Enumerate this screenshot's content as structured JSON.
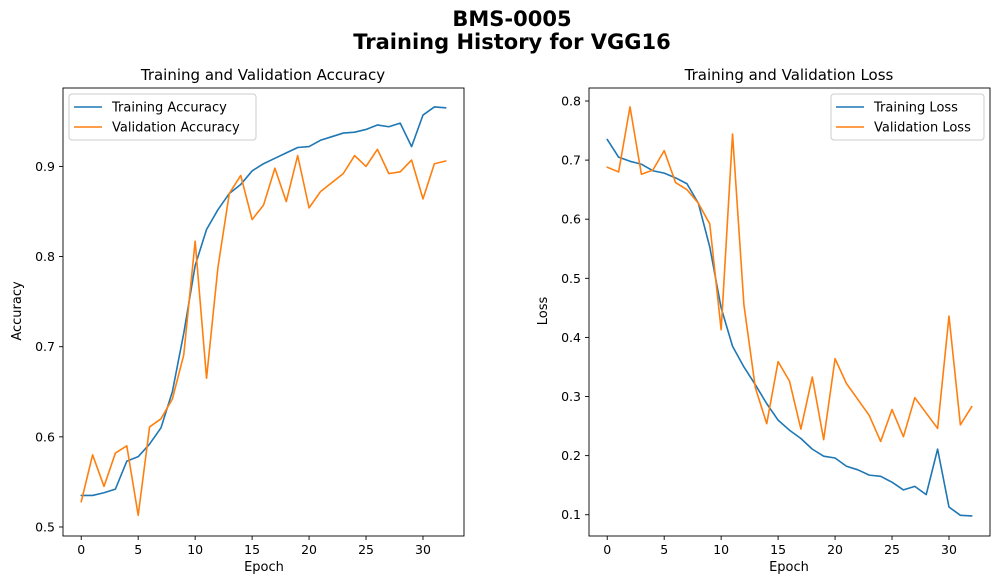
{
  "figure": {
    "title_line1": "BMS-0005",
    "title_line2": "Training History for VGG16"
  },
  "colors": {
    "series1": "#1f77b4",
    "series2": "#ff7f0e"
  },
  "chart_data": [
    {
      "type": "line",
      "title": "Training and Validation Accuracy",
      "xlabel": "Epoch",
      "ylabel": "Accuracy",
      "xlim": [
        -1.6,
        33.6
      ],
      "ylim": [
        0.49,
        0.987
      ],
      "xticks": [
        0,
        5,
        10,
        15,
        20,
        25,
        30
      ],
      "yticks": [
        0.5,
        0.6,
        0.7,
        0.8,
        0.9
      ],
      "legend_position": "upper left",
      "grid": false,
      "x": [
        0,
        1,
        2,
        3,
        4,
        5,
        6,
        7,
        8,
        9,
        10,
        11,
        12,
        13,
        14,
        15,
        16,
        17,
        18,
        19,
        20,
        21,
        22,
        23,
        24,
        25,
        26,
        27,
        28,
        29,
        30,
        31,
        32
      ],
      "series": [
        {
          "name": "Training Accuracy",
          "values": [
            0.535,
            0.535,
            0.538,
            0.542,
            0.573,
            0.578,
            0.592,
            0.61,
            0.65,
            0.715,
            0.79,
            0.83,
            0.852,
            0.87,
            0.88,
            0.895,
            0.903,
            0.909,
            0.915,
            0.921,
            0.922,
            0.929,
            0.933,
            0.937,
            0.938,
            0.941,
            0.946,
            0.944,
            0.948,
            0.922,
            0.957,
            0.966,
            0.965
          ]
        },
        {
          "name": "Validation Accuracy",
          "values": [
            0.528,
            0.58,
            0.545,
            0.582,
            0.59,
            0.513,
            0.611,
            0.62,
            0.642,
            0.691,
            0.817,
            0.665,
            0.788,
            0.87,
            0.89,
            0.841,
            0.857,
            0.898,
            0.861,
            0.912,
            0.854,
            0.872,
            0.882,
            0.892,
            0.912,
            0.9,
            0.919,
            0.892,
            0.894,
            0.907,
            0.864,
            0.903,
            0.906
          ]
        }
      ]
    },
    {
      "type": "line",
      "title": "Training and Validation Loss",
      "xlabel": "Epoch",
      "ylabel": "Loss",
      "xlim": [
        -1.6,
        33.6
      ],
      "ylim": [
        0.064,
        0.822
      ],
      "xticks": [
        0,
        5,
        10,
        15,
        20,
        25,
        30
      ],
      "yticks": [
        0.1,
        0.2,
        0.3,
        0.4,
        0.5,
        0.6,
        0.7,
        0.8
      ],
      "legend_position": "upper right",
      "grid": false,
      "x": [
        0,
        1,
        2,
        3,
        4,
        5,
        6,
        7,
        8,
        9,
        10,
        11,
        12,
        13,
        14,
        15,
        16,
        17,
        18,
        19,
        20,
        21,
        22,
        23,
        24,
        25,
        26,
        27,
        28,
        29,
        30,
        31,
        32
      ],
      "series": [
        {
          "name": "Training Loss",
          "values": [
            0.735,
            0.705,
            0.698,
            0.693,
            0.682,
            0.678,
            0.67,
            0.66,
            0.627,
            0.553,
            0.45,
            0.385,
            0.35,
            0.32,
            0.288,
            0.26,
            0.243,
            0.229,
            0.211,
            0.199,
            0.196,
            0.182,
            0.176,
            0.167,
            0.165,
            0.155,
            0.142,
            0.148,
            0.134,
            0.211,
            0.113,
            0.099,
            0.098
          ]
        },
        {
          "name": "Validation Loss",
          "values": [
            0.688,
            0.68,
            0.79,
            0.676,
            0.683,
            0.716,
            0.662,
            0.65,
            0.627,
            0.592,
            0.413,
            0.744,
            0.455,
            0.315,
            0.254,
            0.359,
            0.326,
            0.245,
            0.333,
            0.227,
            0.364,
            0.322,
            0.295,
            0.268,
            0.224,
            0.278,
            0.232,
            0.298,
            0.272,
            0.246,
            0.436,
            0.252,
            0.283
          ]
        }
      ]
    }
  ]
}
